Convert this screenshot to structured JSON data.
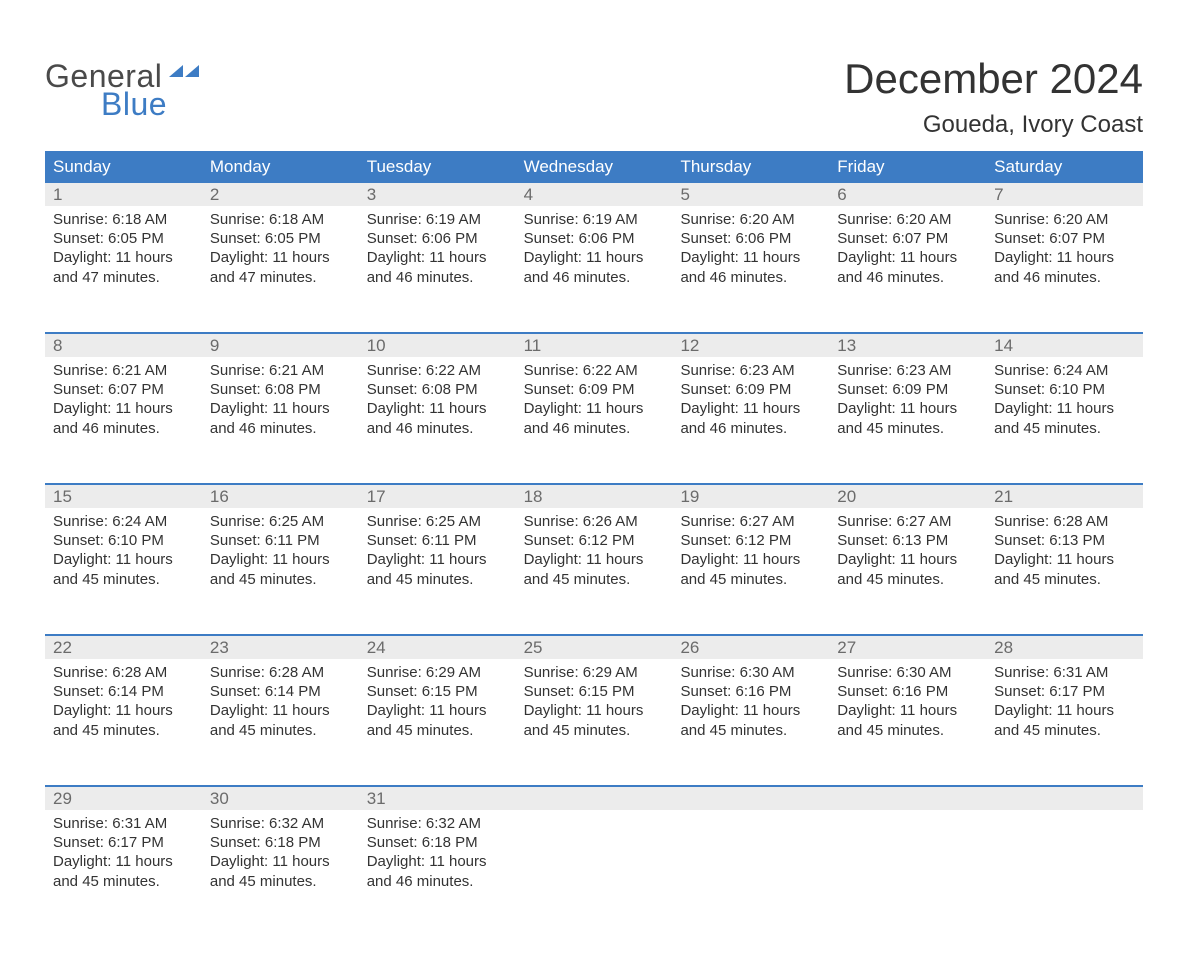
{
  "logo": {
    "text1": "General",
    "text2": "Blue",
    "text_color": "#4a4a4a",
    "accent_color": "#3d7cc4"
  },
  "title": "December 2024",
  "location": "Goueda, Ivory Coast",
  "colors": {
    "header_bg": "#3d7cc4",
    "header_text": "#ffffff",
    "daynum_bg": "#ececec",
    "daynum_text": "#6b6b6b",
    "body_text": "#333333",
    "week_border": "#3d7cc4",
    "page_bg": "#ffffff"
  },
  "type": "calendar-table",
  "day_names": [
    "Sunday",
    "Monday",
    "Tuesday",
    "Wednesday",
    "Thursday",
    "Friday",
    "Saturday"
  ],
  "weeks": [
    [
      {
        "n": "1",
        "sunrise": "Sunrise: 6:18 AM",
        "sunset": "Sunset: 6:05 PM",
        "d1": "Daylight: 11 hours",
        "d2": "and 47 minutes."
      },
      {
        "n": "2",
        "sunrise": "Sunrise: 6:18 AM",
        "sunset": "Sunset: 6:05 PM",
        "d1": "Daylight: 11 hours",
        "d2": "and 47 minutes."
      },
      {
        "n": "3",
        "sunrise": "Sunrise: 6:19 AM",
        "sunset": "Sunset: 6:06 PM",
        "d1": "Daylight: 11 hours",
        "d2": "and 46 minutes."
      },
      {
        "n": "4",
        "sunrise": "Sunrise: 6:19 AM",
        "sunset": "Sunset: 6:06 PM",
        "d1": "Daylight: 11 hours",
        "d2": "and 46 minutes."
      },
      {
        "n": "5",
        "sunrise": "Sunrise: 6:20 AM",
        "sunset": "Sunset: 6:06 PM",
        "d1": "Daylight: 11 hours",
        "d2": "and 46 minutes."
      },
      {
        "n": "6",
        "sunrise": "Sunrise: 6:20 AM",
        "sunset": "Sunset: 6:07 PM",
        "d1": "Daylight: 11 hours",
        "d2": "and 46 minutes."
      },
      {
        "n": "7",
        "sunrise": "Sunrise: 6:20 AM",
        "sunset": "Sunset: 6:07 PM",
        "d1": "Daylight: 11 hours",
        "d2": "and 46 minutes."
      }
    ],
    [
      {
        "n": "8",
        "sunrise": "Sunrise: 6:21 AM",
        "sunset": "Sunset: 6:07 PM",
        "d1": "Daylight: 11 hours",
        "d2": "and 46 minutes."
      },
      {
        "n": "9",
        "sunrise": "Sunrise: 6:21 AM",
        "sunset": "Sunset: 6:08 PM",
        "d1": "Daylight: 11 hours",
        "d2": "and 46 minutes."
      },
      {
        "n": "10",
        "sunrise": "Sunrise: 6:22 AM",
        "sunset": "Sunset: 6:08 PM",
        "d1": "Daylight: 11 hours",
        "d2": "and 46 minutes."
      },
      {
        "n": "11",
        "sunrise": "Sunrise: 6:22 AM",
        "sunset": "Sunset: 6:09 PM",
        "d1": "Daylight: 11 hours",
        "d2": "and 46 minutes."
      },
      {
        "n": "12",
        "sunrise": "Sunrise: 6:23 AM",
        "sunset": "Sunset: 6:09 PM",
        "d1": "Daylight: 11 hours",
        "d2": "and 46 minutes."
      },
      {
        "n": "13",
        "sunrise": "Sunrise: 6:23 AM",
        "sunset": "Sunset: 6:09 PM",
        "d1": "Daylight: 11 hours",
        "d2": "and 45 minutes."
      },
      {
        "n": "14",
        "sunrise": "Sunrise: 6:24 AM",
        "sunset": "Sunset: 6:10 PM",
        "d1": "Daylight: 11 hours",
        "d2": "and 45 minutes."
      }
    ],
    [
      {
        "n": "15",
        "sunrise": "Sunrise: 6:24 AM",
        "sunset": "Sunset: 6:10 PM",
        "d1": "Daylight: 11 hours",
        "d2": "and 45 minutes."
      },
      {
        "n": "16",
        "sunrise": "Sunrise: 6:25 AM",
        "sunset": "Sunset: 6:11 PM",
        "d1": "Daylight: 11 hours",
        "d2": "and 45 minutes."
      },
      {
        "n": "17",
        "sunrise": "Sunrise: 6:25 AM",
        "sunset": "Sunset: 6:11 PM",
        "d1": "Daylight: 11 hours",
        "d2": "and 45 minutes."
      },
      {
        "n": "18",
        "sunrise": "Sunrise: 6:26 AM",
        "sunset": "Sunset: 6:12 PM",
        "d1": "Daylight: 11 hours",
        "d2": "and 45 minutes."
      },
      {
        "n": "19",
        "sunrise": "Sunrise: 6:27 AM",
        "sunset": "Sunset: 6:12 PM",
        "d1": "Daylight: 11 hours",
        "d2": "and 45 minutes."
      },
      {
        "n": "20",
        "sunrise": "Sunrise: 6:27 AM",
        "sunset": "Sunset: 6:13 PM",
        "d1": "Daylight: 11 hours",
        "d2": "and 45 minutes."
      },
      {
        "n": "21",
        "sunrise": "Sunrise: 6:28 AM",
        "sunset": "Sunset: 6:13 PM",
        "d1": "Daylight: 11 hours",
        "d2": "and 45 minutes."
      }
    ],
    [
      {
        "n": "22",
        "sunrise": "Sunrise: 6:28 AM",
        "sunset": "Sunset: 6:14 PM",
        "d1": "Daylight: 11 hours",
        "d2": "and 45 minutes."
      },
      {
        "n": "23",
        "sunrise": "Sunrise: 6:28 AM",
        "sunset": "Sunset: 6:14 PM",
        "d1": "Daylight: 11 hours",
        "d2": "and 45 minutes."
      },
      {
        "n": "24",
        "sunrise": "Sunrise: 6:29 AM",
        "sunset": "Sunset: 6:15 PM",
        "d1": "Daylight: 11 hours",
        "d2": "and 45 minutes."
      },
      {
        "n": "25",
        "sunrise": "Sunrise: 6:29 AM",
        "sunset": "Sunset: 6:15 PM",
        "d1": "Daylight: 11 hours",
        "d2": "and 45 minutes."
      },
      {
        "n": "26",
        "sunrise": "Sunrise: 6:30 AM",
        "sunset": "Sunset: 6:16 PM",
        "d1": "Daylight: 11 hours",
        "d2": "and 45 minutes."
      },
      {
        "n": "27",
        "sunrise": "Sunrise: 6:30 AM",
        "sunset": "Sunset: 6:16 PM",
        "d1": "Daylight: 11 hours",
        "d2": "and 45 minutes."
      },
      {
        "n": "28",
        "sunrise": "Sunrise: 6:31 AM",
        "sunset": "Sunset: 6:17 PM",
        "d1": "Daylight: 11 hours",
        "d2": "and 45 minutes."
      }
    ],
    [
      {
        "n": "29",
        "sunrise": "Sunrise: 6:31 AM",
        "sunset": "Sunset: 6:17 PM",
        "d1": "Daylight: 11 hours",
        "d2": "and 45 minutes."
      },
      {
        "n": "30",
        "sunrise": "Sunrise: 6:32 AM",
        "sunset": "Sunset: 6:18 PM",
        "d1": "Daylight: 11 hours",
        "d2": "and 45 minutes."
      },
      {
        "n": "31",
        "sunrise": "Sunrise: 6:32 AM",
        "sunset": "Sunset: 6:18 PM",
        "d1": "Daylight: 11 hours",
        "d2": "and 46 minutes."
      },
      null,
      null,
      null,
      null
    ]
  ]
}
